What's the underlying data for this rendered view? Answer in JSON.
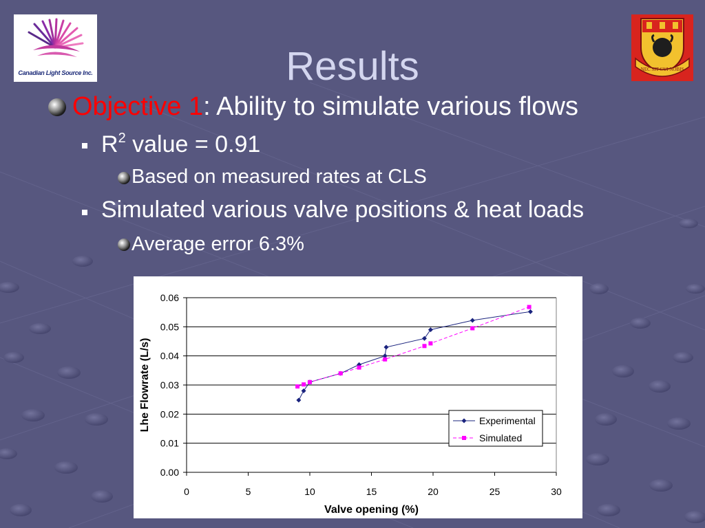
{
  "slide": {
    "title": "Results",
    "logos": {
      "left_caption": "Canadian Light Source Inc.",
      "right_motto": "NEC SIT CUI NOBIS"
    },
    "bullets": {
      "objective_label": "Objective 1",
      "objective_text": ": Ability to simulate various flows",
      "r2_prefix": "R",
      "r2_sup": "2",
      "r2_suffix": " value = 0.91",
      "based_on": "Based on measured rates at CLS",
      "simulated": "Simulated various valve positions & heat loads",
      "average_error": "Average error 6.3%"
    },
    "colors": {
      "background": "#57577f",
      "title": "#d4d6ef",
      "objective_highlight": "#ff0000",
      "experimental": "#1a237e",
      "simulated": "#ff00ff"
    }
  },
  "chart_data": {
    "type": "line",
    "xlabel": "Valve opening (%)",
    "ylabel": "Lhe Flowrate (L/s)",
    "xlim": [
      0,
      30
    ],
    "ylim": [
      0,
      0.06
    ],
    "xticks": [
      "0",
      "5",
      "10",
      "15",
      "20",
      "25",
      "30"
    ],
    "yticks": [
      "0.00",
      "0.01",
      "0.02",
      "0.03",
      "0.04",
      "0.05",
      "0.06"
    ],
    "grid": "horizontal",
    "legend_position": "bottom-right",
    "series": [
      {
        "name": "Experimental",
        "color": "#1a237e",
        "marker": "diamond",
        "line": "solid",
        "points": [
          [
            9.1,
            0.0248
          ],
          [
            9.5,
            0.028
          ],
          [
            10.0,
            0.031
          ],
          [
            12.5,
            0.034
          ],
          [
            14.0,
            0.037
          ],
          [
            16.1,
            0.04
          ],
          [
            16.2,
            0.043
          ],
          [
            19.3,
            0.046
          ],
          [
            19.8,
            0.049
          ],
          [
            23.2,
            0.0522
          ],
          [
            27.9,
            0.0552
          ]
        ]
      },
      {
        "name": "Simulated",
        "color": "#ff00ff",
        "marker": "square",
        "line": "dashed",
        "points": [
          [
            9.0,
            0.0295
          ],
          [
            9.5,
            0.0302
          ],
          [
            10.0,
            0.031
          ],
          [
            12.5,
            0.034
          ],
          [
            14.0,
            0.036
          ],
          [
            16.1,
            0.0388
          ],
          [
            19.3,
            0.0434
          ],
          [
            19.8,
            0.0443
          ],
          [
            23.2,
            0.0495
          ],
          [
            27.8,
            0.0568
          ]
        ]
      }
    ]
  }
}
